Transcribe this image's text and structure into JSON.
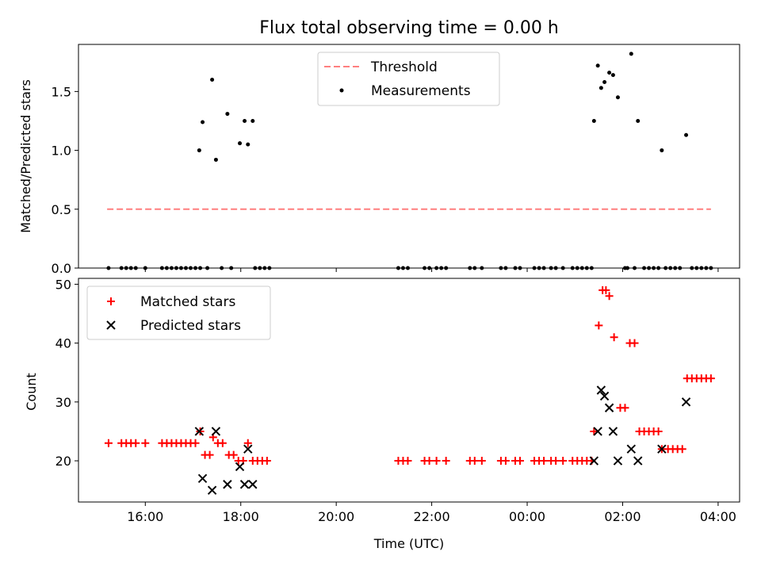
{
  "title": "Flux total observing time = 0.00 h",
  "chart_data": [
    {
      "type": "scatter",
      "ylabel": "Matched/Predicted stars",
      "xlim": [
        14.6,
        28.45
      ],
      "ylim": [
        0,
        1.9
      ],
      "yticks": [
        0.0,
        0.5,
        1.0,
        1.5
      ],
      "ytick_labels": [
        "0.0",
        "0.5",
        "1.0",
        "1.5"
      ],
      "legend_position": "top-center",
      "threshold": {
        "name": "Threshold",
        "value": 0.5,
        "x_range": [
          15.2,
          27.85
        ],
        "color": "#ff7f7f",
        "style": "dashed"
      },
      "series": [
        {
          "name": "Measurements",
          "color": "#000000",
          "marker": "dot",
          "points": [
            [
              15.23,
              0
            ],
            [
              15.5,
              0
            ],
            [
              15.6,
              0
            ],
            [
              15.7,
              0
            ],
            [
              15.8,
              0
            ],
            [
              16.0,
              0
            ],
            [
              16.35,
              0
            ],
            [
              16.45,
              0
            ],
            [
              16.55,
              0
            ],
            [
              16.65,
              0
            ],
            [
              16.75,
              0
            ],
            [
              16.85,
              0
            ],
            [
              16.95,
              0
            ],
            [
              17.05,
              0
            ],
            [
              17.15,
              0
            ],
            [
              17.13,
              1.0
            ],
            [
              17.2,
              1.24
            ],
            [
              17.3,
              0
            ],
            [
              17.4,
              1.6
            ],
            [
              17.48,
              0.92
            ],
            [
              17.6,
              0
            ],
            [
              17.72,
              1.31
            ],
            [
              17.8,
              0
            ],
            [
              17.98,
              1.06
            ],
            [
              18.08,
              1.25
            ],
            [
              18.15,
              1.05
            ],
            [
              18.25,
              1.25
            ],
            [
              18.3,
              0
            ],
            [
              18.4,
              0
            ],
            [
              18.5,
              0
            ],
            [
              18.6,
              0
            ],
            [
              21.3,
              0
            ],
            [
              21.4,
              0
            ],
            [
              21.5,
              0
            ],
            [
              21.85,
              0
            ],
            [
              21.95,
              0
            ],
            [
              22.1,
              0
            ],
            [
              22.2,
              0
            ],
            [
              22.3,
              0
            ],
            [
              22.8,
              0
            ],
            [
              22.9,
              0
            ],
            [
              23.05,
              0
            ],
            [
              23.45,
              0
            ],
            [
              23.55,
              0
            ],
            [
              23.75,
              0
            ],
            [
              23.85,
              0
            ],
            [
              24.15,
              0
            ],
            [
              24.25,
              0
            ],
            [
              24.35,
              0
            ],
            [
              24.5,
              0
            ],
            [
              24.6,
              0
            ],
            [
              24.75,
              0
            ],
            [
              24.95,
              0
            ],
            [
              25.05,
              0
            ],
            [
              25.15,
              0
            ],
            [
              25.25,
              0
            ],
            [
              25.35,
              0
            ],
            [
              25.4,
              1.25
            ],
            [
              25.48,
              1.72
            ],
            [
              25.55,
              1.53
            ],
            [
              25.62,
              1.58
            ],
            [
              25.72,
              1.66
            ],
            [
              25.8,
              1.64
            ],
            [
              25.9,
              1.45
            ],
            [
              26.05,
              0
            ],
            [
              26.1,
              0
            ],
            [
              26.18,
              1.82
            ],
            [
              26.25,
              0
            ],
            [
              26.32,
              1.25
            ],
            [
              26.45,
              0
            ],
            [
              26.55,
              0
            ],
            [
              26.65,
              0
            ],
            [
              26.75,
              0
            ],
            [
              26.82,
              1.0
            ],
            [
              26.9,
              0
            ],
            [
              27.0,
              0
            ],
            [
              27.1,
              0
            ],
            [
              27.2,
              0
            ],
            [
              27.33,
              1.13
            ],
            [
              27.45,
              0
            ],
            [
              27.55,
              0
            ],
            [
              27.65,
              0
            ],
            [
              27.75,
              0
            ],
            [
              27.85,
              0
            ]
          ]
        }
      ]
    },
    {
      "type": "scatter",
      "xlabel": "Time (UTC)",
      "ylabel": "Count",
      "xlim": [
        14.6,
        28.45
      ],
      "ylim": [
        13,
        51
      ],
      "xticks": [
        16,
        18,
        20,
        22,
        24,
        26,
        28
      ],
      "xtick_labels": [
        "16:00",
        "18:00",
        "20:00",
        "22:00",
        "00:00",
        "02:00",
        "04:00"
      ],
      "yticks": [
        20,
        30,
        40,
        50
      ],
      "ytick_labels": [
        "20",
        "30",
        "40",
        "50"
      ],
      "legend_position": "top-left",
      "series": [
        {
          "name": "Matched stars",
          "color": "#ff0000",
          "marker": "plus",
          "points": [
            [
              15.23,
              23
            ],
            [
              15.5,
              23
            ],
            [
              15.6,
              23
            ],
            [
              15.7,
              23
            ],
            [
              15.8,
              23
            ],
            [
              16.0,
              23
            ],
            [
              16.35,
              23
            ],
            [
              16.45,
              23
            ],
            [
              16.55,
              23
            ],
            [
              16.65,
              23
            ],
            [
              16.75,
              23
            ],
            [
              16.85,
              23
            ],
            [
              16.95,
              23
            ],
            [
              17.05,
              23
            ],
            [
              17.15,
              25
            ],
            [
              17.25,
              21
            ],
            [
              17.35,
              21
            ],
            [
              17.42,
              24
            ],
            [
              17.52,
              23
            ],
            [
              17.62,
              23
            ],
            [
              17.75,
              21
            ],
            [
              17.85,
              21
            ],
            [
              17.95,
              20
            ],
            [
              18.05,
              20
            ],
            [
              18.15,
              23
            ],
            [
              18.25,
              20
            ],
            [
              18.35,
              20
            ],
            [
              18.45,
              20
            ],
            [
              18.55,
              20
            ],
            [
              21.3,
              20
            ],
            [
              21.4,
              20
            ],
            [
              21.5,
              20
            ],
            [
              21.85,
              20
            ],
            [
              21.95,
              20
            ],
            [
              22.1,
              20
            ],
            [
              22.3,
              20
            ],
            [
              22.8,
              20
            ],
            [
              22.9,
              20
            ],
            [
              23.05,
              20
            ],
            [
              23.45,
              20
            ],
            [
              23.55,
              20
            ],
            [
              23.75,
              20
            ],
            [
              23.85,
              20
            ],
            [
              24.15,
              20
            ],
            [
              24.25,
              20
            ],
            [
              24.35,
              20
            ],
            [
              24.5,
              20
            ],
            [
              24.6,
              20
            ],
            [
              24.75,
              20
            ],
            [
              24.95,
              20
            ],
            [
              25.05,
              20
            ],
            [
              25.15,
              20
            ],
            [
              25.25,
              20
            ],
            [
              25.35,
              20
            ],
            [
              25.4,
              25
            ],
            [
              25.5,
              43
            ],
            [
              25.58,
              49
            ],
            [
              25.65,
              49
            ],
            [
              25.72,
              48
            ],
            [
              25.82,
              41
            ],
            [
              25.95,
              29
            ],
            [
              26.05,
              29
            ],
            [
              26.15,
              40
            ],
            [
              26.25,
              40
            ],
            [
              26.35,
              25
            ],
            [
              26.45,
              25
            ],
            [
              26.55,
              25
            ],
            [
              26.65,
              25
            ],
            [
              26.75,
              25
            ],
            [
              26.82,
              22
            ],
            [
              26.95,
              22
            ],
            [
              27.05,
              22
            ],
            [
              27.15,
              22
            ],
            [
              27.25,
              22
            ],
            [
              27.35,
              34
            ],
            [
              27.45,
              34
            ],
            [
              27.55,
              34
            ],
            [
              27.65,
              34
            ],
            [
              27.75,
              34
            ],
            [
              27.85,
              34
            ]
          ]
        },
        {
          "name": "Predicted stars",
          "color": "#000000",
          "marker": "x",
          "points": [
            [
              17.13,
              25
            ],
            [
              17.2,
              17
            ],
            [
              17.4,
              15
            ],
            [
              17.48,
              25
            ],
            [
              17.72,
              16
            ],
            [
              17.98,
              19
            ],
            [
              18.08,
              16
            ],
            [
              18.15,
              22
            ],
            [
              18.25,
              16
            ],
            [
              25.4,
              20
            ],
            [
              25.48,
              25
            ],
            [
              25.55,
              32
            ],
            [
              25.62,
              31
            ],
            [
              25.72,
              29
            ],
            [
              25.8,
              25
            ],
            [
              25.9,
              20
            ],
            [
              26.18,
              22
            ],
            [
              26.32,
              20
            ],
            [
              26.82,
              22
            ],
            [
              27.33,
              30
            ]
          ]
        }
      ]
    }
  ]
}
